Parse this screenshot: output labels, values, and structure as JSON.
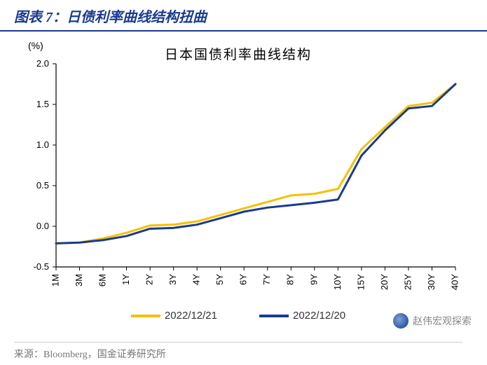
{
  "figure_label": "图表 7：",
  "figure_title": "日债利率曲线结构扭曲",
  "chart": {
    "type": "line",
    "inner_title": "日本国债利率曲线结构",
    "y_unit": "(%)",
    "background_color": "#ffffff",
    "axis_color": "#000000",
    "tick_font_size": 13,
    "title_font_size": 19,
    "x_labels": [
      "1M",
      "3M",
      "6M",
      "1Y",
      "2Y",
      "3Y",
      "4Y",
      "5Y",
      "6Y",
      "7Y",
      "8Y",
      "9Y",
      "10Y",
      "15Y",
      "20Y",
      "25Y",
      "30Y",
      "40Y"
    ],
    "y_min": -0.5,
    "y_max": 2.0,
    "y_tick_step": 0.5,
    "x_label_rotate": -90,
    "line_width": 3,
    "series": [
      {
        "name": "2022/12/21",
        "color": "#f2c200",
        "values": [
          -0.21,
          -0.2,
          -0.15,
          -0.08,
          0.01,
          0.02,
          0.06,
          0.14,
          0.22,
          0.3,
          0.38,
          0.4,
          0.46,
          0.95,
          1.22,
          1.48,
          1.52,
          1.75
        ]
      },
      {
        "name": "2022/12/20",
        "color": "#1a3a8f",
        "values": [
          -0.21,
          -0.2,
          -0.17,
          -0.12,
          -0.03,
          -0.02,
          0.02,
          0.1,
          0.18,
          0.23,
          0.26,
          0.29,
          0.33,
          0.87,
          1.18,
          1.45,
          1.48,
          1.75
        ]
      }
    ]
  },
  "source_prefix": "来源：",
  "source_text": "Bloomberg，国金证券研究所",
  "watermark_text": "赵伟宏观探索"
}
